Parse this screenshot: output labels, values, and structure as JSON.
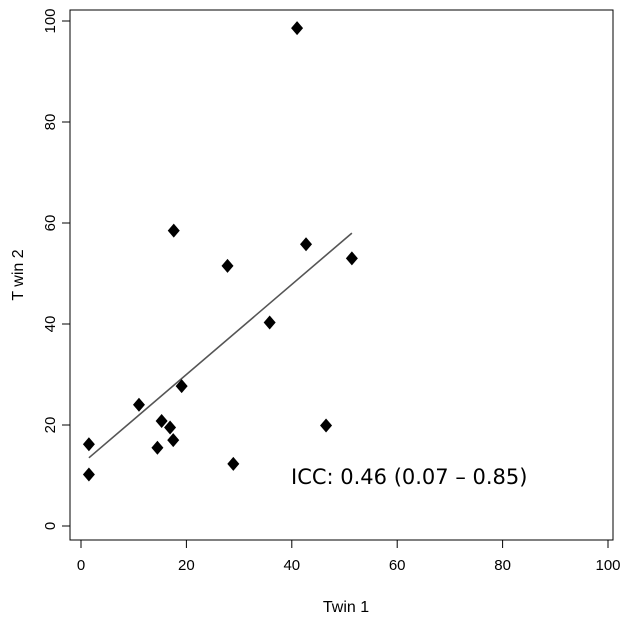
{
  "chart_data": {
    "type": "scatter",
    "xlabel": "Twin 1",
    "ylabel": "T win 2",
    "xlim": [
      0,
      100
    ],
    "ylim": [
      0,
      100
    ],
    "xticks": [
      0,
      20,
      40,
      60,
      80,
      100
    ],
    "yticks": [
      0,
      20,
      40,
      60,
      80,
      100
    ],
    "grid": false,
    "marker": "diamond",
    "marker_color": "#000000",
    "line_color": "#555555",
    "points": [
      {
        "x": 1.5,
        "y": 16.2
      },
      {
        "x": 1.5,
        "y": 10.2
      },
      {
        "x": 11.0,
        "y": 24.0
      },
      {
        "x": 14.5,
        "y": 15.5
      },
      {
        "x": 15.3,
        "y": 20.8
      },
      {
        "x": 16.9,
        "y": 19.5
      },
      {
        "x": 17.5,
        "y": 17.0
      },
      {
        "x": 17.6,
        "y": 58.5
      },
      {
        "x": 19.1,
        "y": 27.7
      },
      {
        "x": 27.8,
        "y": 51.5
      },
      {
        "x": 28.9,
        "y": 12.3
      },
      {
        "x": 35.8,
        "y": 40.3
      },
      {
        "x": 41.0,
        "y": 98.6
      },
      {
        "x": 42.7,
        "y": 55.8
      },
      {
        "x": 46.5,
        "y": 19.9
      },
      {
        "x": 51.4,
        "y": 53.0
      }
    ],
    "fit_line": {
      "x1": 1.5,
      "y1": 13.5,
      "x2": 51.4,
      "y2": 58.0
    },
    "annotation": "ICC: 0.46 (0.07 – 0.85)"
  }
}
